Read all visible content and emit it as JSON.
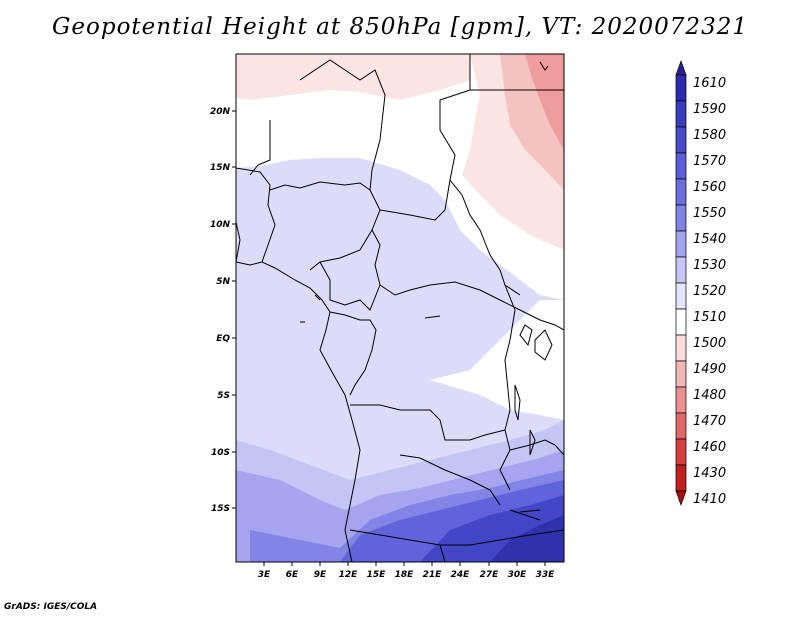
{
  "title": "Geopotential Height at 850hPa [gpm], VT: 2020072321",
  "credit": "GrADS: IGES/COLA",
  "lat_labels": [
    "20N",
    "15N",
    "10N",
    "5N",
    "EQ",
    "5S",
    "10S",
    "15S"
  ],
  "lon_labels": [
    "3E",
    "6E",
    "9E",
    "12E",
    "15E",
    "18E",
    "21E",
    "24E",
    "27E",
    "30E",
    "33E"
  ],
  "colorbar": {
    "levels": [
      "1610",
      "1590",
      "1580",
      "1570",
      "1560",
      "1550",
      "1540",
      "1530",
      "1520",
      "1510",
      "1500",
      "1490",
      "1480",
      "1470",
      "1460",
      "1430",
      "1410"
    ],
    "colors": [
      "#2a1f96",
      "#2e2ab0",
      "#3a3cc0",
      "#4a4ccc",
      "#5a5cd8",
      "#6c6ee0",
      "#8082e8",
      "#a3a5f0",
      "#c6c7f6",
      "#e4e5fb",
      "#ffffff",
      "#fcdcdc",
      "#f4b7b7",
      "#ea9090",
      "#e06868",
      "#d84040",
      "#c22020",
      "#a81010"
    ]
  },
  "map_colors": {
    "pale_blue": "#dcdcfa",
    "light_blue": "#c4c5f5",
    "mid_blue": "#a4a5ee",
    "blue": "#8384e6",
    "dark_blue": "#6163da",
    "darker_blue": "#4446c8",
    "deep_blue": "#3032ad",
    "white": "#ffffff",
    "pale_red": "#fbe4e4",
    "light_red": "#f5c2c2",
    "red": "#ef9c9c"
  }
}
